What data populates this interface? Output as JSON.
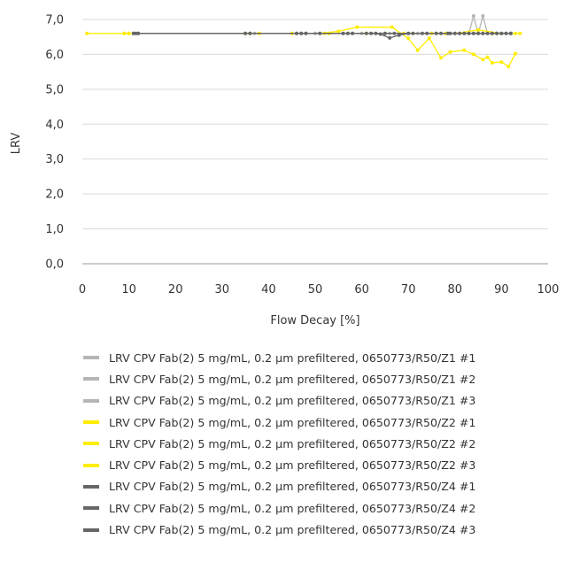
{
  "chart_data": {
    "type": "line",
    "xlabel": "Flow Decay [%]",
    "ylabel": "LRV",
    "xlim": [
      0,
      100
    ],
    "ylim": [
      0,
      7
    ],
    "xticks": [
      0,
      10,
      20,
      30,
      40,
      50,
      60,
      70,
      80,
      90,
      100
    ],
    "yticks": [
      0,
      1,
      2,
      3,
      4,
      5,
      6,
      7
    ],
    "xtick_labels": [
      "0",
      "10",
      "20",
      "30",
      "40",
      "50",
      "60",
      "70",
      "80",
      "90",
      "100"
    ],
    "ytick_labels": [
      "0,0",
      "1,0",
      "2,0",
      "3,0",
      "4,0",
      "5,0",
      "6,0",
      "7,0"
    ],
    "grid": "horizontal",
    "legend_position": "bottom",
    "series": [
      {
        "name": "LRV CPV Fab(2) 5 mg/mL, 0.2 µm prefiltered, 0650773/R50/Z1 #1",
        "color": "#b5b5b5",
        "x": [
          11,
          12,
          35,
          46,
          50,
          57,
          62,
          66,
          70,
          75,
          78,
          80,
          82,
          83,
          84,
          85,
          87,
          89,
          91
        ],
        "y": [
          6.6,
          6.6,
          6.6,
          6.6,
          6.6,
          6.6,
          6.6,
          6.6,
          6.6,
          6.6,
          6.6,
          6.6,
          6.6,
          6.6,
          7.1,
          6.6,
          6.6,
          6.6,
          6.6
        ]
      },
      {
        "name": "LRV CPV Fab(2) 5 mg/mL, 0.2 µm prefiltered, 0650773/R50/Z1 #2",
        "color": "#b5b5b5",
        "x": [
          12,
          36,
          47,
          58,
          65,
          72,
          79,
          83,
          85,
          86,
          87,
          88,
          90,
          92
        ],
        "y": [
          6.6,
          6.6,
          6.6,
          6.6,
          6.6,
          6.6,
          6.6,
          6.6,
          6.6,
          7.1,
          6.6,
          6.6,
          6.6,
          6.6
        ]
      },
      {
        "name": "LRV CPV Fab(2) 5 mg/mL, 0.2 µm prefiltered, 0650773/R50/Z1 #3",
        "color": "#b5b5b5",
        "x": [
          11,
          37,
          48,
          60,
          68,
          76,
          81,
          86,
          89,
          91
        ],
        "y": [
          6.6,
          6.6,
          6.6,
          6.6,
          6.6,
          6.6,
          6.6,
          6.6,
          6.6,
          6.6
        ]
      },
      {
        "name": "LRV CPV Fab(2) 5 mg/mL, 0.2 µm prefiltered, 0650773/R50/Z2 #1",
        "color": "#ffed00",
        "x": [
          1,
          9,
          10,
          35,
          45,
          51,
          55,
          59,
          66.5,
          70,
          72,
          74.5,
          77,
          79,
          82,
          84,
          86,
          87,
          88,
          90,
          91.5,
          93
        ],
        "y": [
          6.6,
          6.6,
          6.6,
          6.6,
          6.6,
          6.6,
          6.66,
          6.78,
          6.78,
          6.46,
          6.12,
          6.46,
          5.9,
          6.07,
          6.12,
          6.0,
          5.85,
          5.92,
          5.76,
          5.78,
          5.65,
          6.02
        ]
      },
      {
        "name": "LRV CPV Fab(2) 5 mg/mL, 0.2 µm prefiltered, 0650773/R50/Z2 #2",
        "color": "#ffed00",
        "x": [
          10,
          38,
          52,
          63,
          71,
          78,
          83,
          88,
          94
        ],
        "y": [
          6.6,
          6.6,
          6.6,
          6.6,
          6.6,
          6.6,
          6.6,
          6.6,
          6.6
        ]
      },
      {
        "name": "LRV CPV Fab(2) 5 mg/mL, 0.2 µm prefiltered, 0650773/R50/Z2 #3",
        "color": "#ffed00",
        "x": [
          9,
          36,
          53,
          61,
          69,
          75,
          80,
          85,
          90,
          93
        ],
        "y": [
          6.6,
          6.6,
          6.6,
          6.6,
          6.6,
          6.6,
          6.6,
          6.7,
          6.6,
          6.6
        ]
      },
      {
        "name": "LRV CPV Fab(2) 5 mg/mL, 0.2 µm prefiltered, 0650773/R50/Z4 #1",
        "color": "#666666",
        "x": [
          11,
          35,
          46,
          51,
          56,
          61,
          63,
          64,
          66,
          68,
          70,
          73,
          77,
          78.5,
          80,
          82,
          84,
          86,
          88,
          90,
          92
        ],
        "y": [
          6.6,
          6.6,
          6.6,
          6.6,
          6.6,
          6.6,
          6.6,
          6.58,
          6.47,
          6.55,
          6.6,
          6.6,
          6.6,
          6.6,
          6.6,
          6.6,
          6.6,
          6.6,
          6.6,
          6.6,
          6.6
        ]
      },
      {
        "name": "LRV CPV Fab(2) 5 mg/mL, 0.2 µm prefiltered, 0650773/R50/Z4 #2",
        "color": "#666666",
        "x": [
          12,
          36,
          47,
          57,
          65,
          71,
          76,
          79,
          83,
          87,
          91
        ],
        "y": [
          6.6,
          6.6,
          6.6,
          6.6,
          6.6,
          6.6,
          6.6,
          6.6,
          6.6,
          6.6,
          6.6
        ]
      },
      {
        "name": "LRV CPV Fab(2) 5 mg/mL, 0.2 µm prefiltered, 0650773/R50/Z4 #3",
        "color": "#666666",
        "x": [
          11.5,
          48,
          58,
          62,
          67,
          74,
          81,
          85,
          89,
          92
        ],
        "y": [
          6.6,
          6.6,
          6.6,
          6.6,
          6.6,
          6.6,
          6.6,
          6.6,
          6.6,
          6.6
        ]
      }
    ]
  }
}
